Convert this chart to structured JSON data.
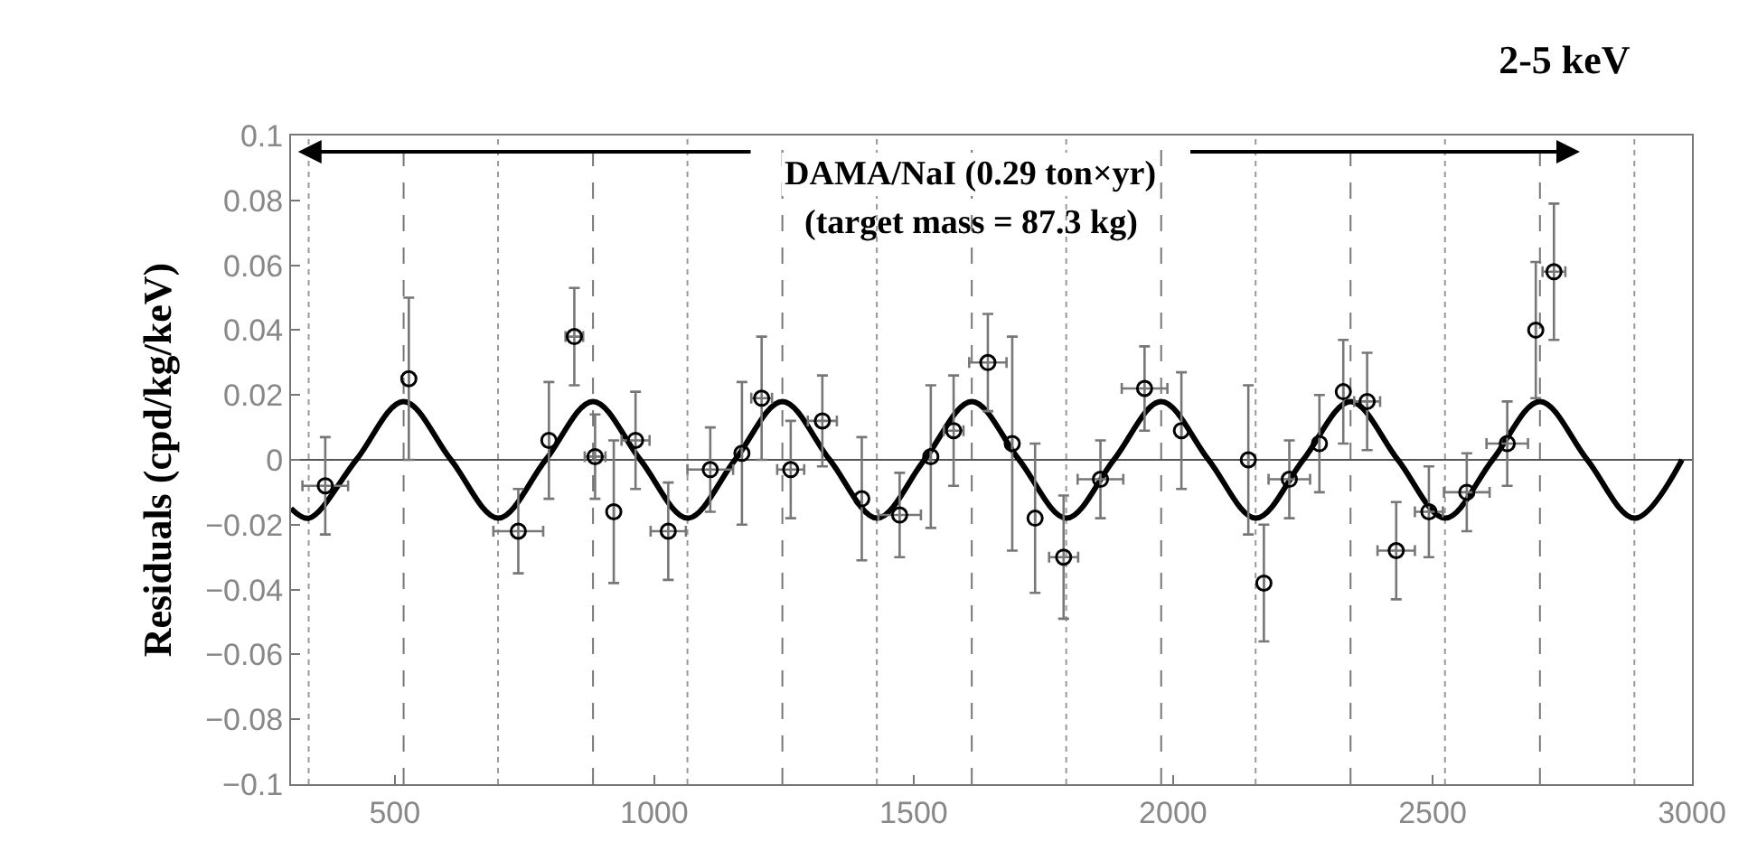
{
  "chart_data": {
    "type": "scatter",
    "title": "2-5 keV",
    "ylabel": "Residuals (cpd/kg/keV)",
    "annotations": [
      "DAMA/NaI (0.29 ton×yr)",
      "(target mass = 87.3 kg)"
    ],
    "xlim": [
      300,
      3000
    ],
    "xticks": [
      500,
      1000,
      1500,
      2000,
      2500,
      3000
    ],
    "ylim": [
      -0.1,
      0.1
    ],
    "yticks": [
      {
        "value": -0.1,
        "label": "−0.1"
      },
      {
        "value": -0.08,
        "label": "−0.08"
      },
      {
        "value": -0.06,
        "label": "−0.06"
      },
      {
        "value": -0.04,
        "label": "−0.04"
      },
      {
        "value": -0.02,
        "label": "−0.02"
      },
      0,
      0.02,
      0.04,
      0.06,
      0.08,
      0.1
    ],
    "grid": false,
    "series": [
      {
        "type": "line",
        "color": "#000000",
        "marker": "none",
        "line_style": "solid",
        "x": [
          300,
          334.5,
          425.75,
          517,
          608.25,
          699.5,
          790.75,
          882,
          973.25,
          1064.5,
          1155.75,
          1247,
          1338.25,
          1429.5,
          1520.75,
          1612,
          1703.25,
          1794.5,
          1885.75,
          1977,
          2068.25,
          2159.5,
          2250.75,
          2342,
          2433.25,
          2524.5,
          2615.75,
          2707,
          2798.25,
          2889.5,
          2980.75
        ],
        "values": [
          -0.015,
          -0.018,
          0,
          0.018,
          0,
          -0.018,
          0,
          0.018,
          0,
          -0.018,
          0,
          0.018,
          0,
          -0.018,
          0,
          0.018,
          0,
          -0.018,
          0,
          0.018,
          0,
          -0.018,
          0,
          0.018,
          0,
          -0.018,
          0,
          0.018,
          0,
          -0.018,
          0
        ]
      },
      {
        "color": "#000000",
        "marker": "circle",
        "x": [
          366,
          527,
          738,
          797,
          846,
          886,
          922,
          964,
          1027,
          1108,
          1169,
          1207,
          1263,
          1324,
          1400,
          1473,
          1533,
          1577,
          1643,
          1690,
          1734,
          1789,
          1860,
          1945,
          2016,
          2145,
          2175,
          2224,
          2282,
          2328,
          2374,
          2430,
          2493,
          2566,
          2644,
          2699,
          2734
        ],
        "values": [
          -0.008,
          0.025,
          -0.022,
          0.006,
          0.038,
          0.001,
          -0.016,
          0.006,
          -0.022,
          -0.003,
          0.002,
          0.019,
          -0.003,
          0.012,
          -0.012,
          -0.017,
          0.001,
          0.009,
          0.03,
          0.005,
          -0.018,
          -0.03,
          -0.006,
          0.022,
          0.009,
          0,
          -0.038,
          -0.006,
          0.005,
          0.021,
          0.018,
          -0.028,
          -0.016,
          -0.01,
          0.005,
          0.04,
          0.058
        ],
        "errors": [
          0.015,
          0.025,
          0.013,
          0.018,
          0.015,
          0.013,
          0.022,
          0.015,
          0.015,
          0.013,
          0.022,
          0.019,
          0.015,
          0.014,
          0.019,
          0.013,
          0.022,
          0.017,
          0.015,
          0.033,
          0.023,
          0.019,
          0.012,
          0.013,
          0.018,
          0.023,
          0.018,
          0.012,
          0.015,
          0.016,
          0.015,
          0.015,
          0.014,
          0.012,
          0.013,
          0.021,
          0.021
        ],
        "xerrors": [
          44,
          null,
          48,
          null,
          17,
          20,
          null,
          27,
          34,
          44,
          null,
          20,
          26,
          28,
          null,
          41,
          null,
          19,
          36,
          null,
          null,
          28,
          44,
          44,
          null,
          null,
          null,
          40,
          null,
          null,
          25,
          36,
          27,
          44,
          40,
          null,
          22
        ]
      }
    ],
    "ref_lines": [
      {
        "axis": "y",
        "value": 0,
        "color": "#555555",
        "line_style": "solid"
      },
      {
        "axis": "x",
        "value": 517,
        "color": "#777777",
        "line_style": "dashed"
      },
      {
        "axis": "x",
        "value": 882,
        "color": "#777777",
        "line_style": "dashed"
      },
      {
        "axis": "x",
        "value": 1247,
        "color": "#777777",
        "line_style": "dashed"
      },
      {
        "axis": "x",
        "value": 1612,
        "color": "#777777",
        "line_style": "dashed"
      },
      {
        "axis": "x",
        "value": 1977,
        "color": "#777777",
        "line_style": "dashed"
      },
      {
        "axis": "x",
        "value": 2342,
        "color": "#777777",
        "line_style": "dashed"
      },
      {
        "axis": "x",
        "value": 2707,
        "color": "#777777",
        "line_style": "dashed"
      },
      {
        "axis": "x",
        "value": 334,
        "color": "#999999",
        "line_style": "dotted"
      },
      {
        "axis": "x",
        "value": 699,
        "color": "#999999",
        "line_style": "dotted"
      },
      {
        "axis": "x",
        "value": 1064,
        "color": "#999999",
        "line_style": "dotted"
      },
      {
        "axis": "x",
        "value": 1429,
        "color": "#999999",
        "line_style": "dotted"
      },
      {
        "axis": "x",
        "value": 1794,
        "color": "#999999",
        "line_style": "dotted"
      },
      {
        "axis": "x",
        "value": 2159,
        "color": "#999999",
        "line_style": "dotted"
      },
      {
        "axis": "x",
        "value": 2524,
        "color": "#999999",
        "line_style": "dotted"
      },
      {
        "axis": "x",
        "value": 2889,
        "color": "#999999",
        "line_style": "dotted"
      }
    ]
  }
}
